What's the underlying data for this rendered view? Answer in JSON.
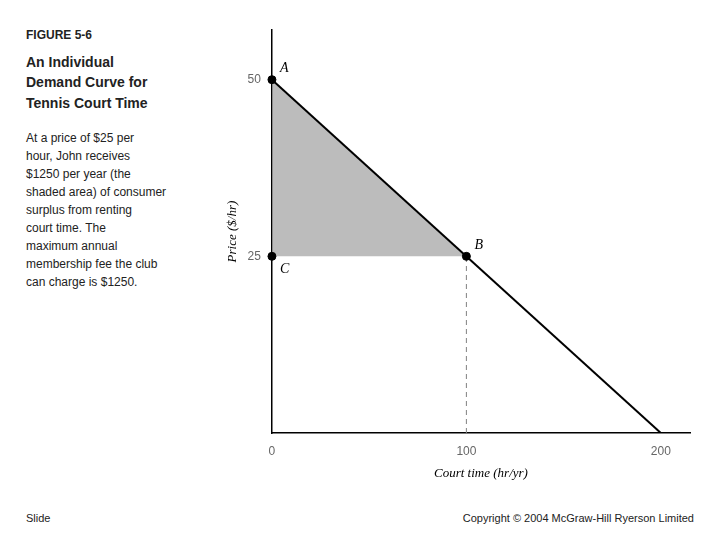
{
  "chart_data": {
    "type": "line",
    "subtitle": "FIGURE 5-6",
    "title": "An Individual\nDemand Curve for\nTennis Court Time",
    "xlabel": "Court time (hr/yr)",
    "ylabel": "Price ($/hr)",
    "series": [
      {
        "type": "line",
        "x": [
          0,
          200
        ],
        "values": [
          50,
          0
        ],
        "color": "#000000",
        "line_style": "solid"
      },
      {
        "type": "line",
        "x": [
          100,
          100
        ],
        "values": [
          0,
          25
        ],
        "color": "#808080",
        "line_style": "dashed"
      },
      {
        "type": "scatter",
        "x": [
          0,
          100,
          0
        ],
        "values": [
          50,
          25,
          25
        ],
        "color": "#000000",
        "marker": "circle"
      }
    ],
    "shaded_area": {
      "points": [
        [
          0,
          50
        ],
        [
          0,
          25
        ],
        [
          100,
          25
        ]
      ],
      "color": "#909090"
    },
    "annotations": [
      {
        "text": "At a price of $25 per\nhour, John receives\n$1250 per year (the\nshaded area) of consumer\nsurplus from renting\ncourt time. The\nmaximum annual\nmembership fee the club\ncan charge is $1250."
      },
      {
        "text": "Slide"
      },
      {
        "text": "Copyright © 2004 McGraw-Hill Ryerson Limited"
      },
      {
        "text": "A",
        "x": 0,
        "y": 50
      },
      {
        "text": "B",
        "x": 100,
        "y": 25
      },
      {
        "text": "C",
        "x": 0,
        "y": 25
      }
    ],
    "xlim": [
      0,
      215
    ],
    "ylim": [
      0,
      57
    ],
    "xticks": [
      0,
      100,
      200
    ],
    "yticks": [
      25,
      50
    ],
    "grid": false
  }
}
